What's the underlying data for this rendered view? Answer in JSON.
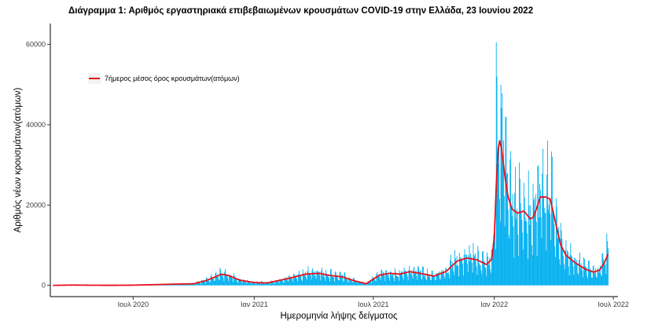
{
  "chart_data": {
    "type": "bar",
    "title": "Διάγραμμα 1: Αριθμός εργαστηριακά επιβεβαιωμένων κρουσμάτων COVID-19 στην Ελλάδα, 23 Ιουνίου 2022",
    "xlabel": "Ημερομηνία λήψης δείγματος",
    "ylabel": "Αριθμός νέων κρουσμάτων(ατόμων)",
    "x_tick_labels": [
      "Ιουλ 2020",
      "Ιαν 2021",
      "Ιουλ 2021",
      "Ιαν 2022",
      "Ιουλ 2022"
    ],
    "x_ticks": [
      "2020-07-01",
      "2021-01-01",
      "2021-07-01",
      "2022-01-01",
      "2022-07-01"
    ],
    "xlim": [
      "2020-02-26",
      "2022-07-08"
    ],
    "y_ticks": [
      0,
      20000,
      40000,
      60000
    ],
    "y_tick_labels": [
      "0",
      "20000",
      "40000",
      "60000"
    ],
    "ylim": [
      -2800,
      65200
    ],
    "grid": false,
    "legend_position": "top-left",
    "colors": {
      "bars": "#00b0f0",
      "line": "#e8111c"
    },
    "series": [
      {
        "type": "bar",
        "date_range": [
          "2020-03-01",
          "2022-06-23"
        ],
        "daily_values": "generated from the 7-day average with daily/weekly variation",
        "peaks": [
          {
            "date": "2022-01-04",
            "value": 60500
          },
          {
            "date": "2022-01-05",
            "value": 52000
          },
          {
            "date": "2022-01-11",
            "value": 50000
          },
          {
            "date": "2022-01-13",
            "value": 47800
          },
          {
            "date": "2022-01-18",
            "value": 42000
          },
          {
            "date": "2022-02-02",
            "value": 29500
          },
          {
            "date": "2022-02-09",
            "value": 26500
          },
          {
            "date": "2022-03-16",
            "value": 34000
          },
          {
            "date": "2022-03-23",
            "value": 36000
          },
          {
            "date": "2022-03-30",
            "value": 32000
          },
          {
            "date": "2022-06-21",
            "value": 12900
          }
        ]
      },
      {
        "type": "line",
        "name": "7ήμερος μέσος όρος κρουσμάτων(ατόμων)",
        "points": [
          [
            "2020-03-01",
            0
          ],
          [
            "2020-04-01",
            80
          ],
          [
            "2020-05-01",
            30
          ],
          [
            "2020-06-01",
            20
          ],
          [
            "2020-07-01",
            50
          ],
          [
            "2020-08-01",
            180
          ],
          [
            "2020-09-01",
            300
          ],
          [
            "2020-10-01",
            400
          ],
          [
            "2020-10-20",
            1200
          ],
          [
            "2020-11-01",
            2000
          ],
          [
            "2020-11-12",
            2800
          ],
          [
            "2020-11-22",
            2500
          ],
          [
            "2020-12-10",
            1300
          ],
          [
            "2021-01-01",
            700
          ],
          [
            "2021-01-20",
            600
          ],
          [
            "2021-02-10",
            1300
          ],
          [
            "2021-03-01",
            2000
          ],
          [
            "2021-03-20",
            2800
          ],
          [
            "2021-04-10",
            3000
          ],
          [
            "2021-04-25",
            2500
          ],
          [
            "2021-05-15",
            2100
          ],
          [
            "2021-06-01",
            1200
          ],
          [
            "2021-06-20",
            400
          ],
          [
            "2021-07-10",
            2500
          ],
          [
            "2021-07-25",
            3000
          ],
          [
            "2021-08-10",
            2800
          ],
          [
            "2021-08-25",
            3400
          ],
          [
            "2021-09-10",
            3000
          ],
          [
            "2021-10-01",
            2300
          ],
          [
            "2021-10-20",
            3500
          ],
          [
            "2021-11-05",
            6000
          ],
          [
            "2021-11-20",
            6800
          ],
          [
            "2021-12-05",
            6400
          ],
          [
            "2021-12-20",
            5200
          ],
          [
            "2021-12-28",
            6500
          ],
          [
            "2022-01-01",
            12000
          ],
          [
            "2022-01-04",
            25000
          ],
          [
            "2022-01-07",
            34000
          ],
          [
            "2022-01-09",
            36000
          ],
          [
            "2022-01-12",
            34000
          ],
          [
            "2022-01-15",
            30000
          ],
          [
            "2022-01-18",
            26000
          ],
          [
            "2022-01-22",
            22000
          ],
          [
            "2022-01-28",
            19000
          ],
          [
            "2022-02-05",
            18000
          ],
          [
            "2022-02-15",
            18500
          ],
          [
            "2022-02-25",
            16500
          ],
          [
            "2022-03-01",
            17000
          ],
          [
            "2022-03-06",
            19000
          ],
          [
            "2022-03-12",
            22000
          ],
          [
            "2022-03-20",
            22000
          ],
          [
            "2022-03-27",
            21500
          ],
          [
            "2022-04-05",
            15000
          ],
          [
            "2022-04-12",
            10000
          ],
          [
            "2022-04-20",
            7500
          ],
          [
            "2022-05-01",
            6000
          ],
          [
            "2022-05-10",
            5000
          ],
          [
            "2022-05-20",
            4000
          ],
          [
            "2022-06-01",
            3300
          ],
          [
            "2022-06-10",
            3800
          ],
          [
            "2022-06-17",
            5500
          ],
          [
            "2022-06-23",
            7800
          ]
        ]
      }
    ]
  }
}
